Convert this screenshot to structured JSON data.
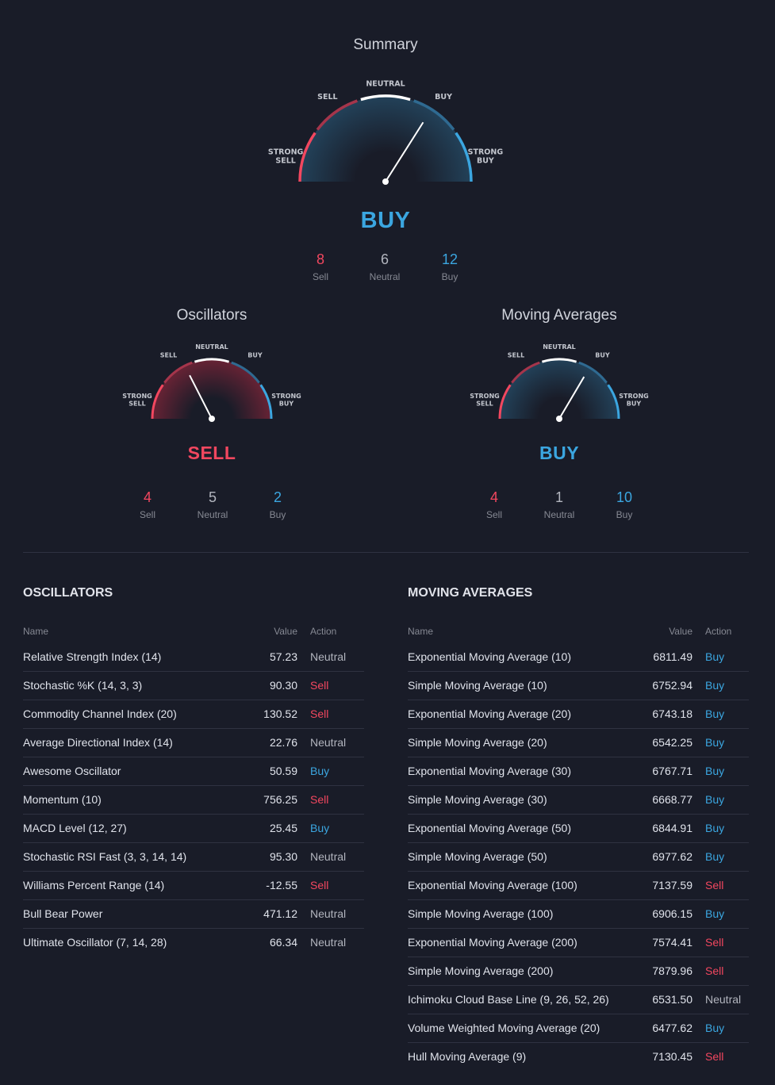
{
  "gauge_labels": {
    "strong_sell": "STRONG SELL",
    "sell": "SELL",
    "neutral": "NEUTRAL",
    "buy": "BUY",
    "strong_buy": "STRONG BUY"
  },
  "summary": {
    "title": "Summary",
    "verdict": "BUY",
    "needle": 0.68,
    "counts": {
      "sell": "8",
      "neutral": "6",
      "buy": "12"
    },
    "count_labels": {
      "sell": "Sell",
      "neutral": "Neutral",
      "buy": "Buy"
    }
  },
  "oscillators_gauge": {
    "title": "Oscillators",
    "verdict": "SELL",
    "needle": 0.35,
    "counts": {
      "sell": "4",
      "neutral": "5",
      "buy": "2"
    },
    "count_labels": {
      "sell": "Sell",
      "neutral": "Neutral",
      "buy": "Buy"
    }
  },
  "moving_averages_gauge": {
    "title": "Moving Averages",
    "verdict": "BUY",
    "needle": 0.67,
    "counts": {
      "sell": "4",
      "neutral": "1",
      "buy": "10"
    },
    "count_labels": {
      "sell": "Sell",
      "neutral": "Neutral",
      "buy": "Buy"
    }
  },
  "oscillators_table": {
    "title": "OSCILLATORS",
    "headers": {
      "name": "Name",
      "value": "Value",
      "action": "Action"
    },
    "rows": [
      {
        "name": "Relative Strength Index (14)",
        "value": "57.23",
        "action": "Neutral"
      },
      {
        "name": "Stochastic %K (14, 3, 3)",
        "value": "90.30",
        "action": "Sell"
      },
      {
        "name": "Commodity Channel Index (20)",
        "value": "130.52",
        "action": "Sell"
      },
      {
        "name": "Average Directional Index (14)",
        "value": "22.76",
        "action": "Neutral"
      },
      {
        "name": "Awesome Oscillator",
        "value": "50.59",
        "action": "Buy"
      },
      {
        "name": "Momentum (10)",
        "value": "756.25",
        "action": "Sell"
      },
      {
        "name": "MACD Level (12, 27)",
        "value": "25.45",
        "action": "Buy"
      },
      {
        "name": "Stochastic RSI Fast (3, 3, 14, 14)",
        "value": "95.30",
        "action": "Neutral"
      },
      {
        "name": "Williams Percent Range (14)",
        "value": "-12.55",
        "action": "Sell"
      },
      {
        "name": "Bull Bear Power",
        "value": "471.12",
        "action": "Neutral"
      },
      {
        "name": "Ultimate Oscillator (7, 14, 28)",
        "value": "66.34",
        "action": "Neutral"
      }
    ]
  },
  "moving_averages_table": {
    "title": "MOVING AVERAGES",
    "headers": {
      "name": "Name",
      "value": "Value",
      "action": "Action"
    },
    "rows": [
      {
        "name": "Exponential Moving Average (10)",
        "value": "6811.49",
        "action": "Buy"
      },
      {
        "name": "Simple Moving Average (10)",
        "value": "6752.94",
        "action": "Buy"
      },
      {
        "name": "Exponential Moving Average (20)",
        "value": "6743.18",
        "action": "Buy"
      },
      {
        "name": "Simple Moving Average (20)",
        "value": "6542.25",
        "action": "Buy"
      },
      {
        "name": "Exponential Moving Average (30)",
        "value": "6767.71",
        "action": "Buy"
      },
      {
        "name": "Simple Moving Average (30)",
        "value": "6668.77",
        "action": "Buy"
      },
      {
        "name": "Exponential Moving Average (50)",
        "value": "6844.91",
        "action": "Buy"
      },
      {
        "name": "Simple Moving Average (50)",
        "value": "6977.62",
        "action": "Buy"
      },
      {
        "name": "Exponential Moving Average (100)",
        "value": "7137.59",
        "action": "Sell"
      },
      {
        "name": "Simple Moving Average (100)",
        "value": "6906.15",
        "action": "Buy"
      },
      {
        "name": "Exponential Moving Average (200)",
        "value": "7574.41",
        "action": "Sell"
      },
      {
        "name": "Simple Moving Average (200)",
        "value": "7879.96",
        "action": "Sell"
      },
      {
        "name": "Ichimoku Cloud Base Line (9, 26, 52, 26)",
        "value": "6531.50",
        "action": "Neutral"
      },
      {
        "name": "Volume Weighted Moving Average (20)",
        "value": "6477.62",
        "action": "Buy"
      },
      {
        "name": "Hull Moving Average (9)",
        "value": "7130.45",
        "action": "Sell"
      }
    ]
  },
  "colors": {
    "sell": "#f2475f",
    "buy": "#3ba6e0",
    "neutral": "#b2b5be",
    "background": "#191c28"
  }
}
